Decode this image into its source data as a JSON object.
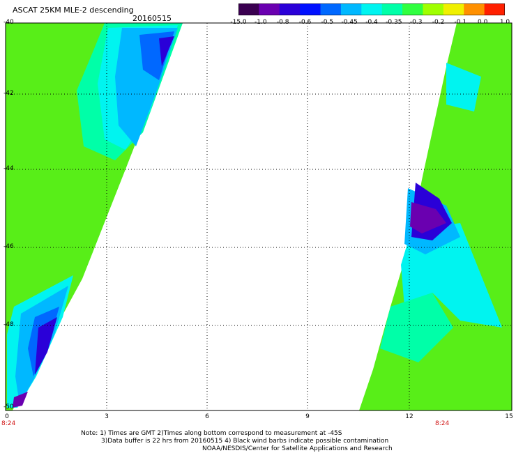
{
  "title": "ASCAT 25KM MLE-2 descending",
  "date": "20160515",
  "colorbar": {
    "labels": [
      "-15.0",
      "-1.0",
      "-0.8",
      "-0.6",
      "-0.5",
      "-0.45",
      "-0.4",
      "-0.35",
      "-0.3",
      "-0.2",
      "-0.1",
      "0.0",
      "1.0"
    ],
    "colors": [
      "#3a0050",
      "#6a00b0",
      "#2a00d8",
      "#0010ff",
      "#0068ff",
      "#00b8ff",
      "#00f4f0",
      "#00ffa8",
      "#30ff40",
      "#a0ff00",
      "#f0f000",
      "#ff9000",
      "#ff2000"
    ]
  },
  "axes": {
    "x_ticks": [
      "0",
      "3",
      "6",
      "9",
      "12",
      "15"
    ],
    "y_ticks": [
      "-40",
      "-42",
      "-44",
      "-46",
      "-48",
      "-50"
    ],
    "time_labels": [
      "8:24",
      "8:24"
    ]
  },
  "notes": {
    "line1": "Note: 1) Times are GMT 2)Times along bottom correspond to measurement at -45S",
    "line2": "3)Data buffer is 22 hrs from 20160515 4) Black wind barbs indicate possible contamination",
    "line3": "NOAA/NESDIS/Center for Satellite Applications and Research"
  },
  "colors": {
    "plot_background": "#ffffff",
    "swath_base": "#58ee18",
    "time_label": "#d01010"
  }
}
